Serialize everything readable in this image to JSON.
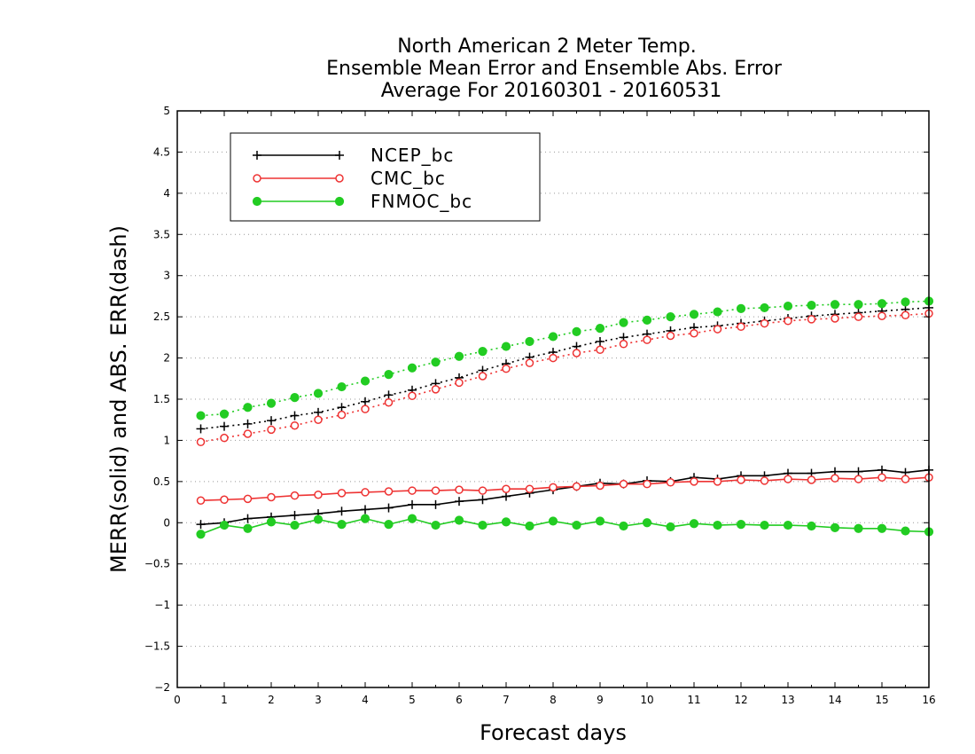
{
  "chart_data": {
    "type": "line",
    "title": [
      "North American 2 Meter Temp.",
      "Ensemble Mean Error and Ensemble Abs. Error",
      "Average For 20160301 - 20160531"
    ],
    "xlabel": "Forecast days",
    "ylabel": "MERR(solid) and ABS. ERR(dash)",
    "xlim": [
      0,
      16
    ],
    "ylim": [
      -2,
      5
    ],
    "xticks": [
      0,
      1,
      2,
      3,
      4,
      5,
      6,
      7,
      8,
      9,
      10,
      11,
      12,
      13,
      14,
      15,
      16
    ],
    "yticks": [
      -2,
      -1.5,
      -1,
      -0.5,
      0,
      0.5,
      1,
      1.5,
      2,
      2.5,
      3,
      3.5,
      4,
      4.5,
      5
    ],
    "ytick_labels": [
      "−2",
      "−1.5",
      "−1",
      "−0.5",
      "0",
      "0.5",
      "1",
      "1.5",
      "2",
      "2.5",
      "3",
      "3.5",
      "4",
      "4.5",
      "5"
    ],
    "grid": "horizontal dotted",
    "legend_position": "top-left",
    "x": [
      0.5,
      1,
      1.5,
      2,
      2.5,
      3,
      3.5,
      4,
      4.5,
      5,
      5.5,
      6,
      6.5,
      7,
      7.5,
      8,
      8.5,
      9,
      9.5,
      10,
      10.5,
      11,
      11.5,
      12,
      12.5,
      13,
      13.5,
      14,
      14.5,
      15,
      15.5,
      16
    ],
    "series": [
      {
        "name": "NCEP_bc",
        "color": "#000000",
        "marker": "plus",
        "merr": [
          -0.02,
          0.0,
          0.05,
          0.07,
          0.09,
          0.11,
          0.14,
          0.16,
          0.18,
          0.22,
          0.22,
          0.26,
          0.28,
          0.32,
          0.36,
          0.4,
          0.44,
          0.48,
          0.47,
          0.51,
          0.5,
          0.55,
          0.53,
          0.57,
          0.57,
          0.6,
          0.6,
          0.62,
          0.62,
          0.64,
          0.61,
          0.64
        ],
        "abs_err": [
          1.14,
          1.17,
          1.2,
          1.24,
          1.3,
          1.34,
          1.4,
          1.47,
          1.55,
          1.61,
          1.69,
          1.76,
          1.85,
          1.93,
          2.01,
          2.07,
          2.14,
          2.2,
          2.25,
          2.29,
          2.33,
          2.37,
          2.39,
          2.42,
          2.45,
          2.48,
          2.51,
          2.53,
          2.55,
          2.57,
          2.59,
          2.61
        ]
      },
      {
        "name": "CMC_bc",
        "color": "#ee3333",
        "marker": "open-circle",
        "merr": [
          0.27,
          0.28,
          0.29,
          0.31,
          0.33,
          0.34,
          0.36,
          0.37,
          0.38,
          0.39,
          0.39,
          0.4,
          0.39,
          0.41,
          0.41,
          0.43,
          0.44,
          0.45,
          0.47,
          0.47,
          0.49,
          0.5,
          0.5,
          0.52,
          0.51,
          0.53,
          0.52,
          0.54,
          0.53,
          0.55,
          0.53,
          0.55
        ],
        "abs_err": [
          0.98,
          1.03,
          1.08,
          1.13,
          1.18,
          1.25,
          1.31,
          1.38,
          1.46,
          1.54,
          1.62,
          1.7,
          1.78,
          1.87,
          1.94,
          2.0,
          2.06,
          2.1,
          2.17,
          2.22,
          2.27,
          2.3,
          2.35,
          2.38,
          2.42,
          2.45,
          2.47,
          2.48,
          2.5,
          2.51,
          2.52,
          2.54
        ]
      },
      {
        "name": "FNMOC_bc",
        "color": "#22cc22",
        "marker": "filled-circle",
        "merr": [
          -0.14,
          -0.03,
          -0.07,
          0.01,
          -0.03,
          0.04,
          -0.02,
          0.05,
          -0.02,
          0.05,
          -0.03,
          0.03,
          -0.03,
          0.01,
          -0.04,
          0.02,
          -0.03,
          0.02,
          -0.04,
          0.0,
          -0.05,
          -0.01,
          -0.03,
          -0.02,
          -0.03,
          -0.03,
          -0.04,
          -0.06,
          -0.07,
          -0.07,
          -0.1,
          -0.11
        ],
        "abs_err": [
          1.3,
          1.32,
          1.4,
          1.45,
          1.52,
          1.57,
          1.65,
          1.72,
          1.8,
          1.88,
          1.95,
          2.02,
          2.08,
          2.14,
          2.2,
          2.26,
          2.32,
          2.36,
          2.43,
          2.46,
          2.5,
          2.53,
          2.56,
          2.6,
          2.61,
          2.63,
          2.64,
          2.65,
          2.65,
          2.66,
          2.68,
          2.69
        ]
      }
    ]
  }
}
